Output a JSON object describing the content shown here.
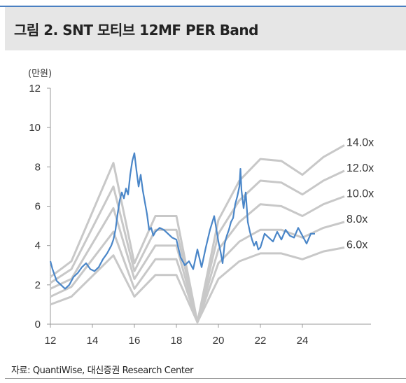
{
  "header": {
    "title": "그림 2. SNT 모티브 12MF PER Band"
  },
  "footer": {
    "source": "자료: QuantiWise, 대신증권 Research Center"
  },
  "colors": {
    "band": "#c8c8c8",
    "price": "#4a86c8",
    "header_bg": "#e6e6e6",
    "rule": "#4a7fc1"
  },
  "chart_data": {
    "type": "line",
    "title": "SNT 모티브 12MF PER Band",
    "unit": "(만원)",
    "xlim": [
      12,
      27
    ],
    "ylim": [
      0,
      12
    ],
    "x_ticks": [
      12,
      14,
      16,
      18,
      20,
      22,
      24
    ],
    "x_tick_labels": [
      "12",
      "14",
      "16",
      "18",
      "20",
      "22",
      "24"
    ],
    "y_ticks": [
      0,
      2,
      4,
      6,
      8,
      10,
      12
    ],
    "y_tick_labels": [
      "0",
      "2",
      "4",
      "6",
      "8",
      "10",
      "12"
    ],
    "grid": false,
    "band_x": [
      12,
      13,
      15,
      16,
      17,
      18,
      19,
      20,
      21,
      22,
      23,
      24,
      25,
      26
    ],
    "bands": [
      {
        "name": "14.0x",
        "label": "14.0x",
        "values": [
          2.4,
          3.2,
          8.2,
          3.1,
          5.5,
          5.5,
          0.1,
          5.3,
          7.3,
          8.4,
          8.3,
          7.6,
          8.5,
          9.1
        ]
      },
      {
        "name": "12.0x",
        "label": "12.0x",
        "values": [
          2.1,
          2.8,
          7.0,
          2.7,
          4.8,
          4.8,
          0.1,
          4.6,
          6.3,
          7.3,
          7.2,
          6.6,
          7.3,
          7.8
        ]
      },
      {
        "name": "10.0x",
        "label": "10.0x",
        "values": [
          1.8,
          2.3,
          5.9,
          2.3,
          4.0,
          4.0,
          0.1,
          3.8,
          5.2,
          6.1,
          6.0,
          5.5,
          6.1,
          6.5
        ]
      },
      {
        "name": "8.0x",
        "label": "8.0x",
        "values": [
          1.4,
          1.9,
          4.7,
          1.8,
          3.3,
          3.3,
          0.1,
          3.1,
          4.2,
          4.8,
          4.8,
          4.4,
          4.9,
          5.2
        ]
      },
      {
        "name": "6.0x",
        "label": "6.0x",
        "values": [
          1.0,
          1.4,
          3.5,
          1.4,
          2.5,
          2.5,
          0.1,
          2.3,
          3.2,
          3.6,
          3.6,
          3.3,
          3.7,
          3.9
        ]
      }
    ],
    "price": {
      "x": [
        12.0,
        12.1,
        12.3,
        12.5,
        12.7,
        12.9,
        13.1,
        13.3,
        13.5,
        13.7,
        13.9,
        14.1,
        14.3,
        14.5,
        14.7,
        14.9,
        15.0,
        15.1,
        15.2,
        15.3,
        15.4,
        15.5,
        15.6,
        15.7,
        15.8,
        15.9,
        16.0,
        16.1,
        16.2,
        16.3,
        16.4,
        16.5,
        16.6,
        16.7,
        16.8,
        16.9,
        17.0,
        17.2,
        17.4,
        17.6,
        17.8,
        18.0,
        18.2,
        18.4,
        18.6,
        18.8,
        19.0,
        19.2,
        19.4,
        19.6,
        19.8,
        20.0,
        20.1,
        20.2,
        20.3,
        20.4,
        20.5,
        20.6,
        20.7,
        20.8,
        20.9,
        21.0,
        21.05,
        21.1,
        21.2,
        21.3,
        21.4,
        21.5,
        21.6,
        21.7,
        21.8,
        21.9,
        22.0,
        22.2,
        22.4,
        22.6,
        22.8,
        23.0,
        23.2,
        23.4,
        23.6,
        23.8,
        24.0,
        24.2,
        24.4,
        24.6
      ],
      "y": [
        3.2,
        2.8,
        2.2,
        2.0,
        1.8,
        2.0,
        2.4,
        2.6,
        2.9,
        3.1,
        2.8,
        2.7,
        2.9,
        3.3,
        3.6,
        4.0,
        4.3,
        4.8,
        5.6,
        6.3,
        6.7,
        6.4,
        6.9,
        6.6,
        7.6,
        8.3,
        8.7,
        7.8,
        7.0,
        7.6,
        6.8,
        6.2,
        5.6,
        4.8,
        4.9,
        4.5,
        4.7,
        4.9,
        4.8,
        4.6,
        4.4,
        4.3,
        3.4,
        3.0,
        3.2,
        2.8,
        3.8,
        2.9,
        3.9,
        4.8,
        5.5,
        4.2,
        3.7,
        3.1,
        4.1,
        4.5,
        4.8,
        5.2,
        5.4,
        6.1,
        6.5,
        7.0,
        7.9,
        6.8,
        5.9,
        6.7,
        5.2,
        4.7,
        4.3,
        4.0,
        4.2,
        3.8,
        3.9,
        4.6,
        4.4,
        4.2,
        4.7,
        4.3,
        4.8,
        4.5,
        4.4,
        4.9,
        4.5,
        4.1,
        4.6,
        4.6
      ]
    }
  }
}
